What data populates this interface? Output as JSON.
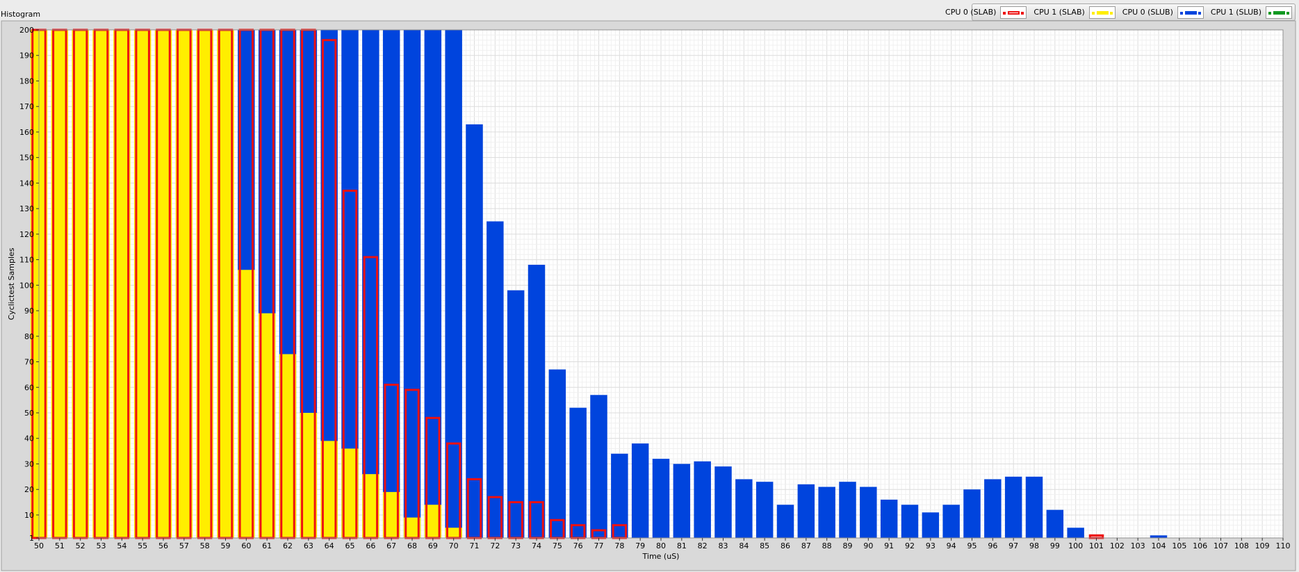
{
  "window": {
    "title": "Histogram"
  },
  "legend": [
    {
      "label": "CPU 0 (SLAB)",
      "color": "#ee1111",
      "style": "outline"
    },
    {
      "label": "CPU 1 (SLAB)",
      "color": "#ffee00",
      "style": "filled"
    },
    {
      "label": "CPU 0 (SLUB)",
      "color": "#0044dd",
      "style": "filled"
    },
    {
      "label": "CPU 1 (SLUB)",
      "color": "#119922",
      "style": "filled"
    }
  ],
  "chart_data": {
    "type": "bar",
    "xlabel": "Time (uS)",
    "ylabel": "Cyclictest Samples",
    "xlim": [
      50,
      110
    ],
    "ylim": [
      1,
      200
    ],
    "yticks": [
      1,
      10,
      20,
      30,
      40,
      50,
      60,
      70,
      80,
      90,
      100,
      110,
      120,
      130,
      140,
      150,
      160,
      170,
      180,
      190,
      200
    ],
    "grid": true,
    "legend_position": "top-right",
    "x": [
      50,
      51,
      52,
      53,
      54,
      55,
      56,
      57,
      58,
      59,
      60,
      61,
      62,
      63,
      64,
      65,
      66,
      67,
      68,
      69,
      70,
      71,
      72,
      73,
      74,
      75,
      76,
      77,
      78,
      79,
      80,
      81,
      82,
      83,
      84,
      85,
      86,
      87,
      88,
      89,
      90,
      91,
      92,
      93,
      94,
      95,
      96,
      97,
      98,
      99,
      100,
      101,
      102,
      103,
      104,
      105,
      106,
      107,
      108,
      109,
      110
    ],
    "series": [
      {
        "name": "CPU 0 (SLAB)",
        "values": [
          200,
          200,
          200,
          200,
          200,
          200,
          200,
          200,
          200,
          200,
          200,
          200,
          200,
          200,
          196,
          137,
          111,
          61,
          59,
          48,
          38,
          24,
          17,
          15,
          15,
          8,
          6,
          4,
          6,
          1,
          1,
          0,
          1,
          0,
          0,
          0,
          0,
          0,
          0,
          0,
          0,
          0,
          0,
          0,
          0,
          0,
          0,
          0,
          0,
          0,
          0,
          2,
          0,
          0,
          0,
          0,
          0,
          0,
          0,
          0,
          0
        ]
      },
      {
        "name": "CPU 1 (SLAB)",
        "values": [
          200,
          200,
          200,
          200,
          200,
          200,
          200,
          200,
          200,
          200,
          106,
          89,
          73,
          50,
          39,
          36,
          26,
          19,
          9,
          14,
          5,
          0,
          0,
          0,
          0,
          0,
          0,
          0,
          0,
          0,
          0,
          0,
          0,
          0,
          0,
          0,
          0,
          0,
          0,
          0,
          0,
          0,
          0,
          0,
          0,
          0,
          0,
          0,
          0,
          0,
          0,
          0,
          0,
          0,
          0,
          0,
          0,
          0,
          0,
          0,
          0
        ]
      },
      {
        "name": "CPU 0 (SLUB)",
        "values": [
          0,
          0,
          0,
          0,
          0,
          0,
          0,
          0,
          0,
          0,
          200,
          200,
          200,
          200,
          200,
          200,
          200,
          200,
          200,
          200,
          200,
          163,
          125,
          98,
          108,
          67,
          52,
          57,
          34,
          38,
          32,
          30,
          31,
          29,
          24,
          23,
          14,
          22,
          21,
          23,
          21,
          16,
          14,
          11,
          14,
          20,
          24,
          25,
          25,
          12,
          5,
          1,
          1,
          0,
          2,
          0,
          0,
          0,
          0,
          0,
          0
        ]
      },
      {
        "name": "CPU 1 (SLUB)",
        "values": [
          0,
          0,
          0,
          0,
          0,
          0,
          0,
          0,
          0,
          0,
          0,
          0,
          0,
          0,
          0,
          0,
          0,
          0,
          0,
          0,
          0,
          0,
          0,
          0,
          0,
          0,
          0,
          0,
          0,
          0,
          0,
          0,
          0,
          0,
          0,
          0,
          0,
          0,
          0,
          0,
          0,
          0,
          0,
          0,
          0,
          0,
          0,
          0,
          0,
          0,
          0,
          0,
          0,
          0,
          0,
          0,
          0,
          0,
          0,
          0,
          0
        ]
      }
    ]
  }
}
